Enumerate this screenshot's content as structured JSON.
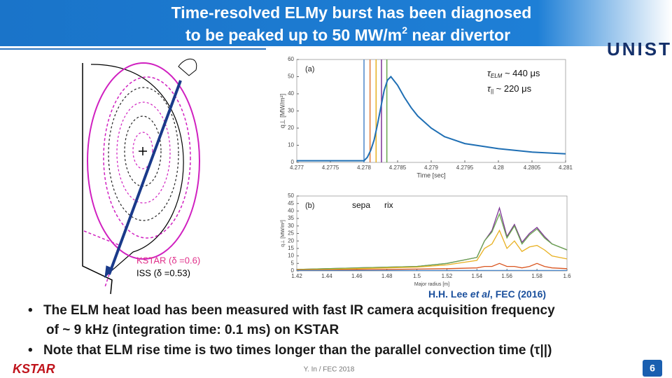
{
  "header": {
    "title_line1": "Time-resolved ELMy burst has been diagnosed",
    "title_line2": "to be peaked up to 50 MW/m",
    "title_sup": "2",
    "title_line2_end": " near divertor",
    "logo": "UNIST"
  },
  "figure_left": {
    "kstar_label": "KSTAR (δ =0.6)",
    "iss_label": "ISS (δ =0.53)"
  },
  "plot_a": {
    "panel": "(a)",
    "xlabel": "Time [sec]",
    "ylabel": "q⊥ [MW/m²]",
    "tau_elm": {
      "symbol": "τ",
      "sub": "ELM",
      "rest": " ~ 440 μs"
    },
    "tau_par": {
      "symbol": "τ",
      "sub": "||",
      "rest": " ~ 220 μs"
    },
    "xlim": [
      4.277,
      4.281
    ],
    "ylim": [
      0,
      60
    ],
    "xticks": [
      4.277,
      4.2775,
      4.278,
      4.2785,
      4.279,
      4.2795,
      4.28,
      4.2805,
      4.281
    ],
    "yticks": [
      0,
      10,
      20,
      30,
      40,
      50,
      60
    ],
    "x": [
      4.277,
      4.2775,
      4.278,
      4.27805,
      4.2781,
      4.27815,
      4.2782,
      4.27825,
      4.2783,
      4.27835,
      4.2784,
      4.2785,
      4.2786,
      4.2787,
      4.2788,
      4.279,
      4.2792,
      4.2795,
      4.28,
      4.2805,
      4.281
    ],
    "series": [
      {
        "color": "#1f6fb4",
        "values": [
          1,
          1,
          1,
          3,
          7,
          13,
          22,
          32,
          42,
          48,
          50,
          45,
          38,
          32,
          27,
          20,
          15,
          11,
          8,
          6,
          5
        ]
      }
    ],
    "markers": [
      {
        "x": 4.278,
        "color": "#4a86c8"
      },
      {
        "x": 4.27809,
        "color": "#e07b39"
      },
      {
        "x": 4.27818,
        "color": "#e8b020"
      },
      {
        "x": 4.27826,
        "color": "#7b3294"
      },
      {
        "x": 4.27834,
        "color": "#6aa84f"
      }
    ]
  },
  "plot_b": {
    "panel": "(b)",
    "sepa": "sepa",
    "rix": "rix",
    "xlabel": "Major radius [m]",
    "ylabel": "q⊥ [MW/m²]",
    "xlim": [
      1.42,
      1.6
    ],
    "ylim": [
      0,
      50
    ],
    "xticks": [
      1.42,
      1.44,
      1.46,
      1.48,
      1.5,
      1.52,
      1.54,
      1.56,
      1.58,
      1.6
    ],
    "yticks": [
      0,
      5,
      10,
      15,
      20,
      25,
      30,
      35,
      40,
      45,
      50
    ],
    "x": [
      1.42,
      1.44,
      1.46,
      1.48,
      1.5,
      1.52,
      1.54,
      1.545,
      1.55,
      1.555,
      1.56,
      1.565,
      1.57,
      1.575,
      1.58,
      1.585,
      1.59,
      1.6
    ],
    "series": [
      {
        "color": "#7b3294",
        "values": [
          1,
          1.5,
          2,
          2.5,
          3,
          5,
          9,
          20,
          27,
          42,
          23,
          31,
          19,
          25,
          29,
          23,
          18,
          14
        ]
      },
      {
        "color": "#6aa84f",
        "values": [
          1,
          1.5,
          2,
          2.5,
          3,
          5,
          9,
          20,
          26,
          38,
          22,
          30,
          18,
          24,
          28,
          22,
          18,
          14
        ]
      },
      {
        "color": "#e8b020",
        "values": [
          0.8,
          1,
          1.5,
          2,
          2.5,
          4,
          7,
          15,
          18,
          27,
          15,
          20,
          13,
          16,
          17,
          14,
          10,
          8
        ]
      },
      {
        "color": "#d9541e",
        "values": [
          0.5,
          0.5,
          0.8,
          1,
          1.2,
          1.5,
          2,
          3,
          3,
          5,
          3,
          3,
          2,
          3,
          5,
          3,
          2,
          1.5
        ]
      },
      {
        "color": "#4a86c8",
        "values": [
          0.3,
          0.3,
          0.3,
          0.3,
          0.3,
          0.3,
          0.3,
          0.3,
          0.3,
          0.3,
          0.3,
          0.3,
          0.3,
          0.3,
          0.3,
          0.3,
          0.3,
          0.3
        ]
      }
    ]
  },
  "citation": {
    "authors": "H.H. Lee ",
    "etal": "et al",
    "rest": ", FEC (2016)"
  },
  "bullets": [
    {
      "lines": [
        "The ELM heat load has been measured with fast IR camera acquisition frequency",
        "of ~ 9 kHz (integration time: 0.1 ms) on KSTAR"
      ]
    },
    {
      "lines": [
        "Note that ELM rise time is two times longer than the parallel convection time (τ||)"
      ]
    }
  ],
  "footer": {
    "logo": "KSTAR",
    "author": "Y. In / FEC 2018",
    "page": "6"
  }
}
